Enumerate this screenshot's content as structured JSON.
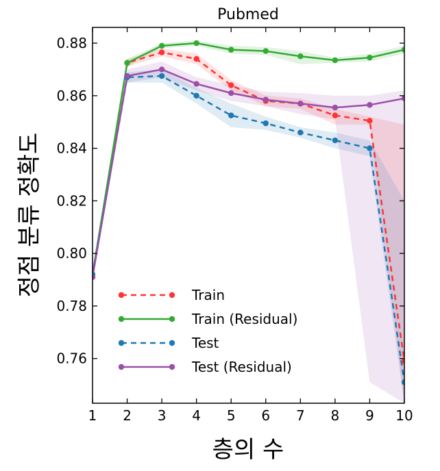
{
  "chart_data": {
    "type": "line",
    "title": "Pubmed",
    "xlabel": "층의 수",
    "ylabel": "정점 분류 정확도",
    "x": [
      1,
      2,
      3,
      4,
      5,
      6,
      7,
      8,
      9,
      10
    ],
    "xlim": [
      1,
      10
    ],
    "ylim": [
      0.743,
      0.886
    ],
    "xticks": [
      "1",
      "2",
      "3",
      "4",
      "5",
      "6",
      "7",
      "8",
      "9",
      "10"
    ],
    "yticks": [
      0.76,
      0.78,
      0.8,
      0.82,
      0.84,
      0.86,
      0.88
    ],
    "ytick_labels": [
      "0.76",
      "0.78",
      "0.80",
      "0.82",
      "0.84",
      "0.86",
      "0.88"
    ],
    "grid": false,
    "legend_position": "lower-left",
    "series": [
      {
        "name": "Train",
        "color": "#ff3333",
        "dashed": true,
        "values": [
          0.791,
          0.8725,
          0.8765,
          0.874,
          0.864,
          0.858,
          0.857,
          0.8525,
          0.8505,
          0.759
        ],
        "lower": [
          0.791,
          0.871,
          0.875,
          0.872,
          0.862,
          0.856,
          0.855,
          0.849,
          0.849,
          0.743
        ],
        "upper": [
          0.791,
          0.874,
          0.878,
          0.876,
          0.866,
          0.86,
          0.859,
          0.855,
          0.852,
          0.849
        ]
      },
      {
        "name": "Train (Residual)",
        "color": "#33aa33",
        "dashed": false,
        "values": [
          0.792,
          0.8725,
          0.879,
          0.88,
          0.8775,
          0.877,
          0.875,
          0.8735,
          0.8745,
          0.8775
        ],
        "lower": [
          0.792,
          0.871,
          0.878,
          0.879,
          0.876,
          0.8755,
          0.872,
          0.8725,
          0.873,
          0.876
        ],
        "upper": [
          0.792,
          0.874,
          0.88,
          0.881,
          0.879,
          0.8785,
          0.877,
          0.8745,
          0.876,
          0.879
        ]
      },
      {
        "name": "Test",
        "color": "#1f77b4",
        "dashed": true,
        "values": [
          0.792,
          0.867,
          0.8675,
          0.86,
          0.8525,
          0.8495,
          0.846,
          0.843,
          0.84,
          0.751
        ],
        "lower": [
          0.792,
          0.865,
          0.865,
          0.857,
          0.848,
          0.847,
          0.844,
          0.84,
          0.837,
          0.743
        ],
        "upper": [
          0.792,
          0.869,
          0.87,
          0.863,
          0.857,
          0.852,
          0.848,
          0.846,
          0.843,
          0.82
        ]
      },
      {
        "name": "Test (Residual)",
        "color": "#9a4fa8",
        "dashed": false,
        "values": [
          0.791,
          0.8675,
          0.87,
          0.8645,
          0.861,
          0.8585,
          0.857,
          0.8555,
          0.8565,
          0.859
        ],
        "lower": [
          0.791,
          0.865,
          0.867,
          0.862,
          0.858,
          0.856,
          0.853,
          0.851,
          0.751,
          0.743
        ],
        "upper": [
          0.791,
          0.87,
          0.873,
          0.867,
          0.864,
          0.8615,
          0.861,
          0.86,
          0.86,
          0.862
        ]
      }
    ]
  }
}
